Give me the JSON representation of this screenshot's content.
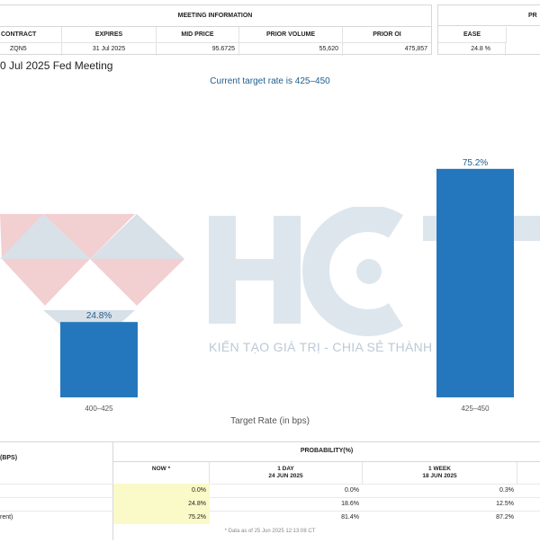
{
  "meeting_info": {
    "title": "MEETING INFORMATION",
    "headers": [
      "CONTRACT",
      "EXPIRES",
      "MID PRICE",
      "PRIOR VOLUME",
      "PRIOR OI"
    ],
    "row": [
      "ZQN5",
      "31 Jul 2025",
      "95.6725",
      "55,620",
      "475,857"
    ]
  },
  "probabilities_box": {
    "title": "PR",
    "header": "EASE",
    "value": "24.8 %"
  },
  "meeting_heading": "0 Jul 2025 Fed Meeting",
  "target_note": "Current target rate is 425–450",
  "chart_data": {
    "type": "bar",
    "categories": [
      "400–425",
      "425–450"
    ],
    "values": [
      24.8,
      75.2
    ],
    "data_labels": [
      "24.8%",
      "75.2%"
    ],
    "xlabel": "Target Rate (in bps)",
    "ylabel": "",
    "ylim": [
      0,
      100
    ],
    "bar_color": "#2577bd",
    "label_color": "#1f5d8c"
  },
  "watermark": {
    "logo_text": "HCT",
    "tagline": "KIẾN TẠO GIÁ TRỊ - CHIA SẺ THÀNH CÔNG"
  },
  "prob_table": {
    "bps_header": "(BPS)",
    "probability_header": "PROBABILITY(%)",
    "columns": [
      {
        "line1": "NOW *",
        "line2": ""
      },
      {
        "line1": "1 DAY",
        "line2": "24 JUN 2025"
      },
      {
        "line1": "1 WEEK",
        "line2": "18 JUN 2025"
      },
      {
        "line1": "",
        "line2": ""
      }
    ],
    "rows": [
      {
        "label": "",
        "values": [
          "0.0%",
          "0.0%",
          "0.3%"
        ]
      },
      {
        "label": "",
        "values": [
          "24.8%",
          "18.6%",
          "12.5%"
        ]
      },
      {
        "label": "rent)",
        "values": [
          "75.2%",
          "81.4%",
          "87.2%"
        ]
      }
    ],
    "footnote": "* Data as of 25 Jun 2025 12:13:08 CT"
  }
}
